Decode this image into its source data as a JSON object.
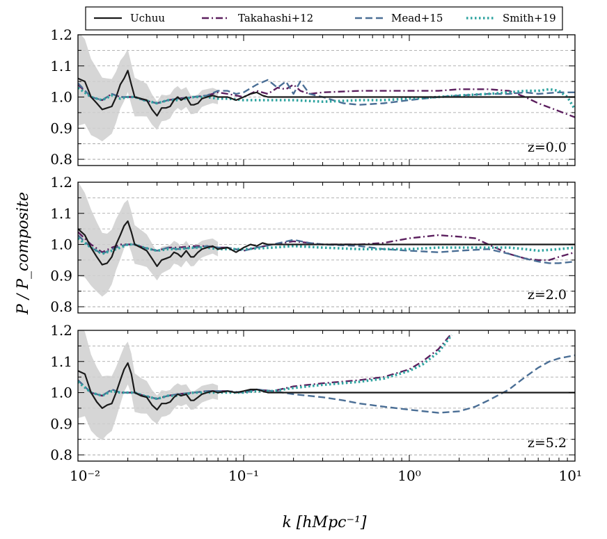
{
  "chart_data": {
    "type": "line",
    "x_scale": "log",
    "xlim": [
      0.01,
      10
    ],
    "ylim": [
      0.78,
      1.2
    ],
    "xlabel": "k [hMpc⁻¹]",
    "ylabel": "P / P_composite",
    "x_tick_labels": [
      "10⁻²",
      "10⁻¹",
      "10⁰",
      "10¹"
    ],
    "y_tick_labels": [
      "0.8",
      "0.9",
      "1.0",
      "1.1",
      "1.2"
    ],
    "legend": {
      "placement": "top-center",
      "entries": [
        {
          "name": "Uchuu",
          "color": "#1a1a1a",
          "style": "solid"
        },
        {
          "name": "Takahashi+12",
          "color": "#5b1f5e",
          "style": "dashdot"
        },
        {
          "name": "Mead+15",
          "color": "#4a6e95",
          "style": "dashed"
        },
        {
          "name": "Smith+19",
          "color": "#2fa4a0",
          "style": "dotted"
        }
      ]
    },
    "panels": [
      {
        "label": "z=0.0",
        "series": [
          {
            "name": "Uchuu",
            "x": [
              0.01,
              0.011,
              0.012,
              0.013,
              0.014,
              0.015,
              0.016,
              0.017,
              0.018,
              0.019,
              0.02,
              0.021,
              0.022,
              0.024,
              0.026,
              0.028,
              0.03,
              0.032,
              0.034,
              0.036,
              0.038,
              0.04,
              0.042,
              0.045,
              0.048,
              0.05,
              0.053,
              0.056,
              0.06,
              0.065,
              0.07,
              0.08,
              0.09,
              0.1,
              0.11,
              0.12,
              0.13,
              0.14,
              0.15,
              0.2,
              0.5,
              1,
              2,
              5,
              10
            ],
            "y": [
              1.06,
              1.05,
              1.0,
              0.98,
              0.96,
              0.965,
              0.97,
              1.0,
              1.04,
              1.06,
              1.085,
              1.04,
              1.0,
              0.995,
              0.99,
              0.96,
              0.94,
              0.965,
              0.965,
              0.97,
              0.99,
              1.0,
              0.99,
              1.0,
              0.975,
              0.975,
              0.98,
              0.995,
              1.0,
              1.005,
              1.0,
              1.0,
              0.99,
              1.0,
              1.01,
              1.015,
              1.005,
              1.0,
              1.0,
              1.0,
              1.0,
              1.0,
              1.0,
              1.0,
              1.0
            ]
          },
          {
            "name": "Takahashi+12",
            "x": [
              0.01,
              0.012,
              0.014,
              0.016,
              0.018,
              0.02,
              0.022,
              0.025,
              0.03,
              0.035,
              0.04,
              0.05,
              0.06,
              0.07,
              0.08,
              0.09,
              0.1,
              0.12,
              0.14,
              0.16,
              0.18,
              0.2,
              0.22,
              0.25,
              0.3,
              0.5,
              1,
              1.5,
              2,
              3,
              4,
              5,
              6,
              8,
              10
            ],
            "y": [
              1.04,
              1.0,
              0.99,
              1.01,
              1.0,
              1.0,
              1.0,
              0.99,
              0.98,
              0.99,
              0.995,
              1.0,
              1.005,
              1.015,
              1.01,
              1.005,
              1.0,
              1.02,
              1.01,
              1.03,
              1.025,
              1.04,
              1.02,
              1.01,
              1.015,
              1.02,
              1.02,
              1.02,
              1.025,
              1.025,
              1.02,
              1.0,
              0.98,
              0.955,
              0.935
            ]
          },
          {
            "name": "Mead+15",
            "x": [
              0.01,
              0.012,
              0.014,
              0.016,
              0.018,
              0.02,
              0.022,
              0.025,
              0.03,
              0.035,
              0.04,
              0.05,
              0.06,
              0.07,
              0.08,
              0.09,
              0.1,
              0.12,
              0.14,
              0.16,
              0.18,
              0.2,
              0.22,
              0.25,
              0.3,
              0.4,
              0.5,
              0.7,
              1,
              1.5,
              2,
              3,
              4,
              5,
              6,
              8,
              10
            ],
            "y": [
              1.045,
              1.0,
              0.99,
              1.01,
              1.0,
              1.0,
              1.0,
              0.99,
              0.98,
              0.99,
              0.995,
              1.0,
              1.005,
              1.02,
              1.02,
              1.01,
              1.015,
              1.04,
              1.055,
              1.03,
              1.05,
              1.01,
              1.05,
              1.01,
              1.0,
              0.98,
              0.975,
              0.98,
              0.99,
              1.0,
              1.005,
              1.01,
              1.01,
              1.015,
              1.01,
              1.015,
              1.015
            ]
          },
          {
            "name": "Smith+19",
            "x": [
              0.01,
              0.012,
              0.014,
              0.016,
              0.018,
              0.02,
              0.022,
              0.025,
              0.03,
              0.035,
              0.04,
              0.05,
              0.06,
              0.07,
              0.08,
              0.1,
              0.15,
              0.2,
              0.3,
              0.5,
              0.7,
              1,
              1.5,
              2,
              3,
              4,
              5,
              6,
              7,
              8,
              9,
              10
            ],
            "y": [
              1.03,
              1.0,
              0.99,
              1.005,
              0.995,
              1.0,
              1.0,
              0.99,
              0.98,
              0.99,
              0.99,
              1.0,
              1.0,
              0.995,
              0.995,
              0.99,
              0.99,
              0.99,
              0.985,
              0.99,
              0.99,
              0.995,
              1.0,
              1.005,
              1.01,
              1.015,
              1.02,
              1.02,
              1.025,
              1.02,
              1.0,
              0.96
            ]
          }
        ]
      },
      {
        "label": "z=2.0",
        "series": [
          {
            "name": "Uchuu",
            "x": [
              0.01,
              0.011,
              0.012,
              0.013,
              0.014,
              0.015,
              0.016,
              0.017,
              0.018,
              0.019,
              0.02,
              0.021,
              0.022,
              0.024,
              0.026,
              0.028,
              0.03,
              0.032,
              0.034,
              0.036,
              0.038,
              0.04,
              0.042,
              0.045,
              0.048,
              0.05,
              0.053,
              0.056,
              0.06,
              0.065,
              0.07,
              0.08,
              0.09,
              0.1,
              0.11,
              0.12,
              0.13,
              0.14,
              0.15,
              0.2,
              0.5,
              1,
              2,
              5,
              10
            ],
            "y": [
              1.05,
              1.03,
              0.99,
              0.96,
              0.935,
              0.94,
              0.96,
              1.0,
              1.03,
              1.06,
              1.075,
              1.04,
              1.0,
              0.99,
              0.98,
              0.955,
              0.93,
              0.95,
              0.955,
              0.96,
              0.975,
              0.97,
              0.96,
              0.98,
              0.96,
              0.96,
              0.975,
              0.985,
              0.99,
              0.995,
              0.985,
              0.99,
              0.975,
              0.99,
              1.0,
              0.995,
              1.005,
              1.0,
              1.0,
              1.0,
              1.0,
              1.0,
              1.0,
              1.0,
              1.0
            ]
          },
          {
            "name": "Takahashi+12",
            "x": [
              0.01,
              0.012,
              0.014,
              0.016,
              0.018,
              0.02,
              0.022,
              0.025,
              0.03,
              0.035,
              0.04,
              0.05,
              0.06,
              0.07,
              0.08,
              0.1,
              0.12,
              0.15,
              0.2,
              0.25,
              0.3,
              0.5,
              0.7,
              1,
              1.5,
              2,
              2.5,
              3,
              4,
              5,
              6,
              7,
              8,
              10
            ],
            "y": [
              1.04,
              1.0,
              0.975,
              0.99,
              1.0,
              1.0,
              1.0,
              0.99,
              0.98,
              0.99,
              0.99,
              0.995,
              0.995,
              0.99,
              0.99,
              0.98,
              0.99,
              1.0,
              1.01,
              1.005,
              1.0,
              1.0,
              1.005,
              1.02,
              1.03,
              1.025,
              1.02,
              1.0,
              0.97,
              0.955,
              0.95,
              0.95,
              0.96,
              0.975
            ]
          },
          {
            "name": "Mead+15",
            "x": [
              0.01,
              0.012,
              0.014,
              0.016,
              0.018,
              0.02,
              0.022,
              0.025,
              0.03,
              0.035,
              0.04,
              0.05,
              0.06,
              0.07,
              0.08,
              0.1,
              0.12,
              0.15,
              0.2,
              0.25,
              0.3,
              0.5,
              0.7,
              1,
              1.5,
              2,
              3,
              4,
              5,
              6,
              7,
              8,
              10
            ],
            "y": [
              1.03,
              0.99,
              0.97,
              0.985,
              0.995,
              1.0,
              1.0,
              0.99,
              0.98,
              0.99,
              0.985,
              0.99,
              0.995,
              0.99,
              0.99,
              0.98,
              0.99,
              1.0,
              1.015,
              1.005,
              1.0,
              0.995,
              0.985,
              0.98,
              0.975,
              0.98,
              0.985,
              0.97,
              0.955,
              0.945,
              0.94,
              0.94,
              0.945
            ]
          },
          {
            "name": "Smith+19",
            "x": [
              0.01,
              0.012,
              0.014,
              0.016,
              0.018,
              0.02,
              0.022,
              0.025,
              0.03,
              0.035,
              0.04,
              0.05,
              0.06,
              0.07,
              0.08,
              0.1,
              0.15,
              0.2,
              0.3,
              0.5,
              0.7,
              1,
              1.5,
              2,
              3,
              4,
              5,
              6,
              8,
              10
            ],
            "y": [
              1.02,
              0.99,
              0.97,
              0.98,
              0.99,
              1.0,
              1.0,
              0.99,
              0.98,
              0.985,
              0.985,
              0.99,
              0.99,
              0.985,
              0.985,
              0.985,
              0.99,
              0.995,
              0.99,
              0.985,
              0.985,
              0.985,
              0.99,
              0.99,
              0.99,
              0.99,
              0.985,
              0.98,
              0.985,
              0.99
            ]
          }
        ]
      },
      {
        "label": "z=5.2",
        "series": [
          {
            "name": "Uchuu",
            "x": [
              0.01,
              0.011,
              0.012,
              0.013,
              0.014,
              0.015,
              0.016,
              0.017,
              0.018,
              0.019,
              0.02,
              0.021,
              0.022,
              0.024,
              0.026,
              0.028,
              0.03,
              0.032,
              0.034,
              0.036,
              0.038,
              0.04,
              0.042,
              0.045,
              0.048,
              0.05,
              0.053,
              0.056,
              0.06,
              0.065,
              0.07,
              0.08,
              0.09,
              0.1,
              0.11,
              0.12,
              0.13,
              0.14,
              0.15,
              0.2,
              0.5,
              1,
              2,
              5,
              10
            ],
            "y": [
              1.07,
              1.06,
              1.0,
              0.97,
              0.95,
              0.96,
              0.965,
              1.0,
              1.04,
              1.075,
              1.095,
              1.06,
              1.0,
              0.99,
              0.985,
              0.96,
              0.945,
              0.965,
              0.965,
              0.97,
              0.985,
              0.995,
              0.99,
              0.995,
              0.975,
              0.975,
              0.985,
              0.995,
              1.0,
              1.005,
              1.0,
              1.005,
              1.0,
              1.005,
              1.01,
              1.01,
              1.005,
              1.0,
              1.0,
              1.0,
              1.0,
              1.0,
              1.0,
              1.0,
              1.0
            ]
          },
          {
            "name": "Takahashi+12",
            "x": [
              0.01,
              0.012,
              0.014,
              0.016,
              0.018,
              0.02,
              0.022,
              0.025,
              0.03,
              0.035,
              0.04,
              0.05,
              0.06,
              0.07,
              0.08,
              0.1,
              0.12,
              0.15,
              0.2,
              0.3,
              0.5,
              0.7,
              1,
              1.2,
              1.5,
              1.8
            ],
            "y": [
              1.04,
              1.0,
              0.99,
              1.01,
              1.0,
              1.0,
              1.0,
              0.99,
              0.98,
              0.99,
              0.995,
              1.0,
              1.005,
              1.005,
              1.005,
              1.0,
              1.01,
              1.005,
              1.02,
              1.03,
              1.04,
              1.05,
              1.075,
              1.1,
              1.14,
              1.19
            ]
          },
          {
            "name": "Mead+15",
            "x": [
              0.01,
              0.012,
              0.014,
              0.016,
              0.018,
              0.02,
              0.022,
              0.025,
              0.03,
              0.035,
              0.04,
              0.05,
              0.06,
              0.07,
              0.08,
              0.1,
              0.12,
              0.15,
              0.2,
              0.3,
              0.4,
              0.5,
              0.7,
              1,
              1.5,
              2,
              2.5,
              3,
              4,
              5,
              6,
              7,
              8,
              10
            ],
            "y": [
              1.04,
              1.0,
              0.99,
              1.01,
              1.0,
              1.0,
              1.0,
              0.99,
              0.98,
              0.99,
              0.995,
              1.0,
              1.005,
              1.005,
              1.005,
              1.0,
              1.01,
              1.005,
              0.995,
              0.985,
              0.975,
              0.965,
              0.955,
              0.945,
              0.935,
              0.94,
              0.955,
              0.975,
              1.01,
              1.05,
              1.08,
              1.1,
              1.11,
              1.12
            ]
          },
          {
            "name": "Smith+19",
            "x": [
              0.01,
              0.012,
              0.014,
              0.016,
              0.018,
              0.02,
              0.022,
              0.025,
              0.03,
              0.035,
              0.04,
              0.05,
              0.06,
              0.07,
              0.08,
              0.1,
              0.12,
              0.15,
              0.2,
              0.3,
              0.5,
              0.7,
              1,
              1.2,
              1.5,
              1.8
            ],
            "y": [
              1.035,
              1.0,
              0.99,
              1.005,
              1.0,
              1.0,
              1.0,
              0.99,
              0.98,
              0.99,
              0.99,
              1.0,
              1.0,
              1.0,
              1.0,
              1.0,
              1.005,
              1.005,
              1.015,
              1.025,
              1.035,
              1.045,
              1.07,
              1.09,
              1.13,
              1.185
            ]
          }
        ]
      }
    ]
  }
}
